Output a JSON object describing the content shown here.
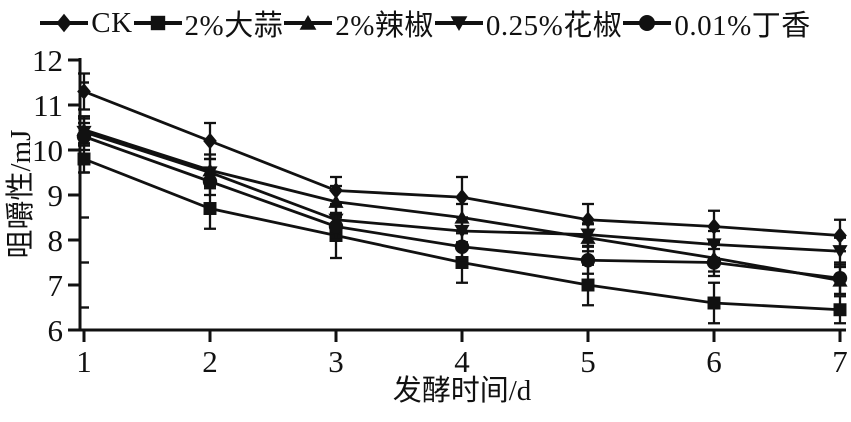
{
  "figure": {
    "background": "#ffffff",
    "ink_color": "#111111"
  },
  "chart_data": {
    "type": "line",
    "title": "",
    "xlabel": "发酵时间/d",
    "ylabel": "咀嚼性/mJ",
    "x": [
      1,
      2,
      3,
      4,
      5,
      6,
      7
    ],
    "xlim": [
      1,
      7
    ],
    "ylim": [
      6,
      12
    ],
    "xticks": [
      1,
      2,
      3,
      4,
      5,
      6,
      7
    ],
    "yticks": [
      6,
      7,
      8,
      9,
      10,
      11,
      12
    ],
    "y_minor_step": 0.5,
    "grid": false,
    "legend_position": "top",
    "error_bars": true,
    "series": [
      {
        "name": "CK",
        "marker": "diamond",
        "values": [
          11.3,
          10.2,
          9.1,
          8.95,
          8.45,
          8.3,
          8.1
        ],
        "errors": [
          0.4,
          0.4,
          0.3,
          0.45,
          0.35,
          0.35,
          0.35
        ]
      },
      {
        "name": "2%大蒜",
        "marker": "square",
        "values": [
          9.8,
          8.7,
          8.1,
          7.5,
          7.0,
          6.6,
          6.45
        ],
        "errors": [
          0.3,
          0.45,
          0.5,
          0.45,
          0.45,
          0.45,
          0.3
        ]
      },
      {
        "name": "2%辣椒",
        "marker": "triangle-up",
        "values": [
          10.45,
          9.55,
          8.85,
          8.5,
          8.05,
          7.6,
          7.1
        ],
        "errors": [
          0.3,
          0.35,
          0.35,
          0.3,
          0.3,
          0.3,
          0.3
        ]
      },
      {
        "name": "0.25%花椒",
        "marker": "triangle-down",
        "values": [
          10.4,
          9.5,
          8.45,
          8.2,
          8.12,
          7.9,
          7.75
        ],
        "errors": [
          0.3,
          0.3,
          0.3,
          0.3,
          0.25,
          0.3,
          0.3
        ]
      },
      {
        "name": "0.01%丁香",
        "marker": "circle",
        "values": [
          10.3,
          9.3,
          8.3,
          7.85,
          7.55,
          7.5,
          7.15
        ],
        "errors": [
          0.3,
          0.3,
          0.3,
          0.3,
          0.3,
          0.3,
          0.35
        ]
      }
    ]
  }
}
